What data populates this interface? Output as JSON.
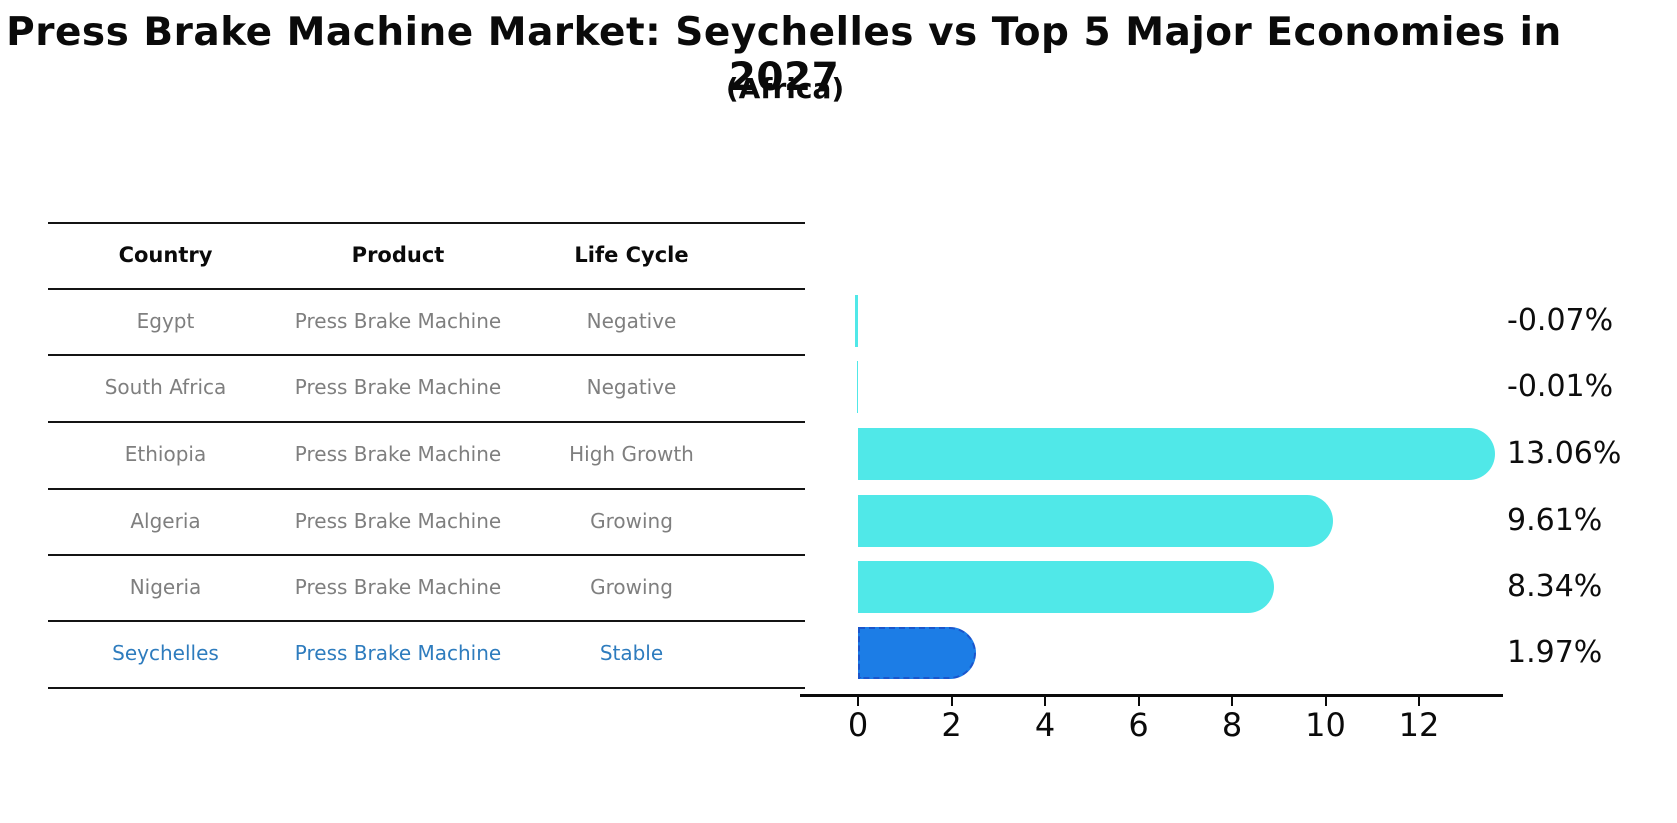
{
  "title": "Press Brake Machine Market: Seychelles vs Top 5 Major Economies in 2027",
  "subtitle": "(Africa)",
  "table": {
    "headers": [
      "Country",
      "Product",
      "Life Cycle"
    ],
    "rows": [
      {
        "country": "Egypt",
        "product": "Press Brake Machine",
        "life_cycle": "Negative",
        "value_label": "-0.07%",
        "highlighted": false
      },
      {
        "country": "South Africa",
        "product": "Press Brake Machine",
        "life_cycle": "Negative",
        "value_label": "-0.01%",
        "highlighted": false
      },
      {
        "country": "Ethiopia",
        "product": "Press Brake Machine",
        "life_cycle": "High Growth",
        "value_label": "13.06%",
        "highlighted": false
      },
      {
        "country": "Algeria",
        "product": "Press Brake Machine",
        "life_cycle": "Growing",
        "value_label": "9.61%",
        "highlighted": false
      },
      {
        "country": "Nigeria",
        "product": "Press Brake Machine",
        "life_cycle": "Growing",
        "value_label": "8.34%",
        "highlighted": false
      },
      {
        "country": "Seychelles",
        "product": "Press Brake Machine",
        "life_cycle": "Stable",
        "value_label": "1.97%",
        "highlighted": true
      }
    ]
  },
  "chart_data": {
    "type": "bar",
    "orientation": "horizontal",
    "title": "Press Brake Machine Market: Seychelles vs Top 5 Major Economies in 2027",
    "subtitle": "(Africa)",
    "categories": [
      "Egypt",
      "South Africa",
      "Ethiopia",
      "Algeria",
      "Nigeria",
      "Seychelles"
    ],
    "values": [
      -0.07,
      -0.01,
      13.06,
      9.61,
      8.34,
      1.97
    ],
    "value_labels": [
      "-0.07%",
      "-0.01%",
      "13.06%",
      "9.61%",
      "8.34%",
      "1.97%"
    ],
    "xticks": [
      0,
      2,
      4,
      6,
      8,
      10,
      12
    ],
    "xlim": [
      -1.2,
      13.8
    ],
    "xlabel": "",
    "ylabel": "",
    "grid": false,
    "legend": "none",
    "bar_color": "#50e8e8",
    "highlight_color": "#1c7de6",
    "highlight_border_color": "#1a55cc",
    "highlight_index": 5
  }
}
